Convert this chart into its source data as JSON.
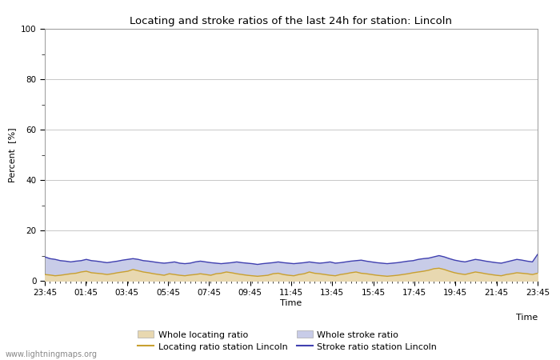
{
  "title": "Locating and stroke ratios of the last 24h for station: Lincoln",
  "xlabel": "Time",
  "ylabel": "Percent  [%]",
  "ylim": [
    0,
    100
  ],
  "yticks": [
    0,
    20,
    40,
    60,
    80,
    100
  ],
  "x_labels": [
    "23:45",
    "01:45",
    "03:45",
    "05:45",
    "07:45",
    "09:45",
    "11:45",
    "13:45",
    "15:45",
    "17:45",
    "19:45",
    "21:45",
    "23:45"
  ],
  "background_color": "#ffffff",
  "plot_bg_color": "#ffffff",
  "grid_color": "#c8c8c8",
  "whole_locating_fill_color": "#e8d8b0",
  "whole_stroke_fill_color": "#c8cce8",
  "locating_line_color": "#c8a030",
  "stroke_line_color": "#4040b0",
  "watermark": "www.lightningmaps.org",
  "whole_locating_ratio": [
    2.5,
    2.3,
    2.0,
    2.2,
    2.5,
    2.8,
    3.0,
    3.5,
    3.8,
    3.2,
    3.0,
    2.8,
    2.5,
    2.8,
    3.2,
    3.5,
    3.8,
    4.5,
    4.0,
    3.5,
    3.2,
    2.8,
    2.5,
    2.2,
    2.8,
    2.5,
    2.2,
    2.0,
    2.3,
    2.5,
    2.8,
    2.5,
    2.2,
    2.8,
    3.0,
    3.5,
    3.2,
    2.8,
    2.5,
    2.2,
    2.0,
    1.8,
    2.0,
    2.2,
    2.8,
    3.0,
    2.5,
    2.2,
    2.0,
    2.5,
    2.8,
    3.5,
    3.0,
    2.8,
    2.5,
    2.2,
    2.0,
    2.5,
    2.8,
    3.2,
    3.5,
    3.0,
    2.8,
    2.5,
    2.2,
    2.0,
    1.8,
    2.0,
    2.2,
    2.5,
    2.8,
    3.2,
    3.5,
    3.8,
    4.2,
    4.8,
    5.0,
    4.5,
    3.8,
    3.2,
    2.8,
    2.5,
    3.0,
    3.5,
    3.2,
    2.8,
    2.5,
    2.2,
    2.0,
    2.5,
    2.8,
    3.2,
    3.0,
    2.8,
    2.5,
    3.0
  ],
  "whole_stroke_ratio": [
    9.5,
    8.8,
    8.5,
    8.0,
    7.8,
    7.5,
    7.8,
    8.0,
    8.5,
    8.0,
    7.8,
    7.5,
    7.2,
    7.5,
    7.8,
    8.2,
    8.5,
    8.8,
    8.5,
    8.0,
    7.8,
    7.5,
    7.2,
    7.0,
    7.2,
    7.5,
    7.0,
    6.8,
    7.0,
    7.5,
    7.8,
    7.5,
    7.2,
    7.0,
    6.8,
    7.0,
    7.2,
    7.5,
    7.2,
    7.0,
    6.8,
    6.5,
    6.8,
    7.0,
    7.2,
    7.5,
    7.2,
    7.0,
    6.8,
    7.0,
    7.2,
    7.5,
    7.2,
    7.0,
    7.2,
    7.5,
    7.0,
    7.2,
    7.5,
    7.8,
    8.0,
    8.2,
    7.8,
    7.5,
    7.2,
    7.0,
    6.8,
    7.0,
    7.2,
    7.5,
    7.8,
    8.0,
    8.5,
    8.8,
    9.0,
    9.5,
    10.0,
    9.5,
    8.8,
    8.2,
    7.8,
    7.5,
    8.0,
    8.5,
    8.2,
    7.8,
    7.5,
    7.2,
    7.0,
    7.5,
    8.0,
    8.5,
    8.2,
    7.8,
    7.5,
    10.5
  ],
  "locating_line_ratio": [
    2.5,
    2.3,
    2.0,
    2.2,
    2.5,
    2.8,
    3.0,
    3.5,
    3.8,
    3.2,
    3.0,
    2.8,
    2.5,
    2.8,
    3.2,
    3.5,
    3.8,
    4.5,
    4.0,
    3.5,
    3.2,
    2.8,
    2.5,
    2.2,
    2.8,
    2.5,
    2.2,
    2.0,
    2.3,
    2.5,
    2.8,
    2.5,
    2.2,
    2.8,
    3.0,
    3.5,
    3.2,
    2.8,
    2.5,
    2.2,
    2.0,
    1.8,
    2.0,
    2.2,
    2.8,
    3.0,
    2.5,
    2.2,
    2.0,
    2.5,
    2.8,
    3.5,
    3.0,
    2.8,
    2.5,
    2.2,
    2.0,
    2.5,
    2.8,
    3.2,
    3.5,
    3.0,
    2.8,
    2.5,
    2.2,
    2.0,
    1.8,
    2.0,
    2.2,
    2.5,
    2.8,
    3.2,
    3.5,
    3.8,
    4.2,
    4.8,
    5.0,
    4.5,
    3.8,
    3.2,
    2.8,
    2.5,
    3.0,
    3.5,
    3.2,
    2.8,
    2.5,
    2.2,
    2.0,
    2.5,
    2.8,
    3.2,
    3.0,
    2.8,
    2.5,
    3.0
  ],
  "stroke_line_ratio": [
    9.5,
    8.8,
    8.5,
    8.0,
    7.8,
    7.5,
    7.8,
    8.0,
    8.5,
    8.0,
    7.8,
    7.5,
    7.2,
    7.5,
    7.8,
    8.2,
    8.5,
    8.8,
    8.5,
    8.0,
    7.8,
    7.5,
    7.2,
    7.0,
    7.2,
    7.5,
    7.0,
    6.8,
    7.0,
    7.5,
    7.8,
    7.5,
    7.2,
    7.0,
    6.8,
    7.0,
    7.2,
    7.5,
    7.2,
    7.0,
    6.8,
    6.5,
    6.8,
    7.0,
    7.2,
    7.5,
    7.2,
    7.0,
    6.8,
    7.0,
    7.2,
    7.5,
    7.2,
    7.0,
    7.2,
    7.5,
    7.0,
    7.2,
    7.5,
    7.8,
    8.0,
    8.2,
    7.8,
    7.5,
    7.2,
    7.0,
    6.8,
    7.0,
    7.2,
    7.5,
    7.8,
    8.0,
    8.5,
    8.8,
    9.0,
    9.5,
    10.0,
    9.5,
    8.8,
    8.2,
    7.8,
    7.5,
    8.0,
    8.5,
    8.2,
    7.8,
    7.5,
    7.2,
    7.0,
    7.5,
    8.0,
    8.5,
    8.2,
    7.8,
    7.5,
    10.5
  ]
}
